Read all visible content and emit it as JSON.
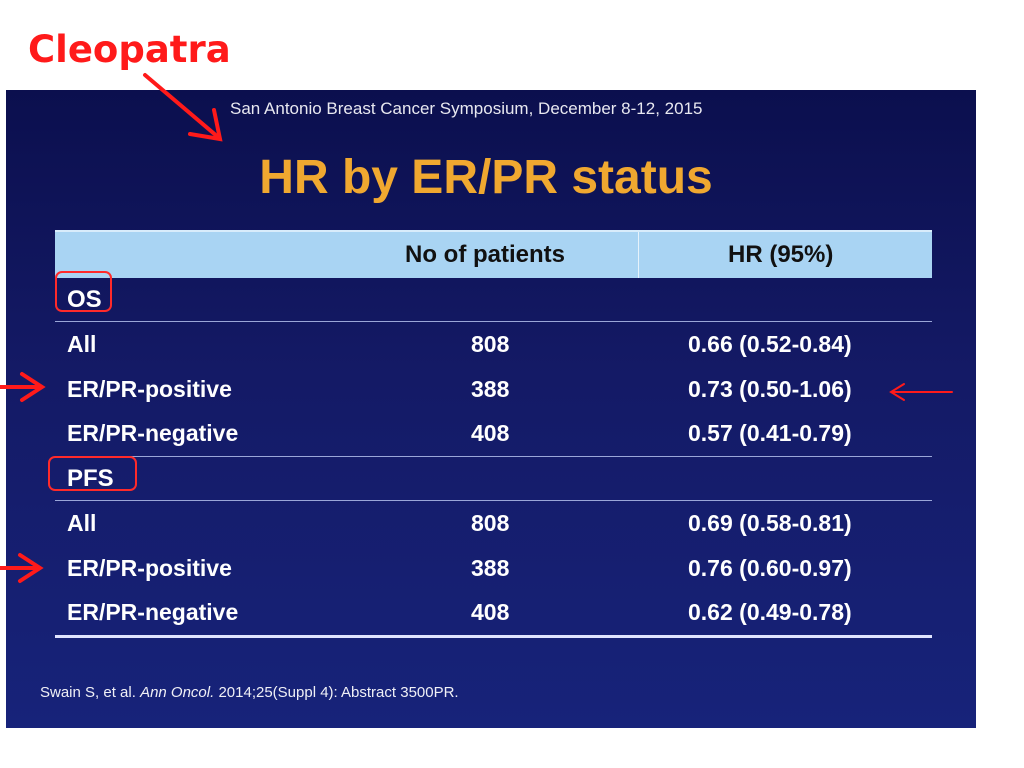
{
  "annotation": {
    "label": "Cleopatra",
    "color": "#ff1a1a"
  },
  "slide": {
    "conference": "San Antonio Breast Cancer Symposium, December 8-12, 2015",
    "title": "HR by ER/PR status",
    "columns": {
      "group": "",
      "patients": "No of patients",
      "hr": "HR (95%)"
    },
    "sections": [
      {
        "label": "OS",
        "rows": [
          {
            "group": "All",
            "patients": "808",
            "hr": "0.66 (0.52-0.84)"
          },
          {
            "group": "ER/PR-positive",
            "patients": "388",
            "hr": "0.73 (0.50-1.06)"
          },
          {
            "group": "ER/PR-negative",
            "patients": "408",
            "hr": "0.57 (0.41-0.79)"
          }
        ]
      },
      {
        "label": "PFS",
        "rows": [
          {
            "group": "All",
            "patients": "808",
            "hr": "0.69 (0.58-0.81)"
          },
          {
            "group": "ER/PR-positive",
            "patients": "388",
            "hr": "0.76 (0.60-0.97)"
          },
          {
            "group": "ER/PR-negative",
            "patients": "408",
            "hr": "0.62 (0.49-0.78)"
          }
        ]
      }
    ],
    "footnote": {
      "authors": "Swain S, et al. ",
      "journal": "Ann Oncol.",
      "rest": " 2014;25(Suppl 4): Abstract 3500PR."
    },
    "colors": {
      "background": "#0f1560",
      "title": "#f0a830",
      "header": "#a9d4f3"
    }
  }
}
